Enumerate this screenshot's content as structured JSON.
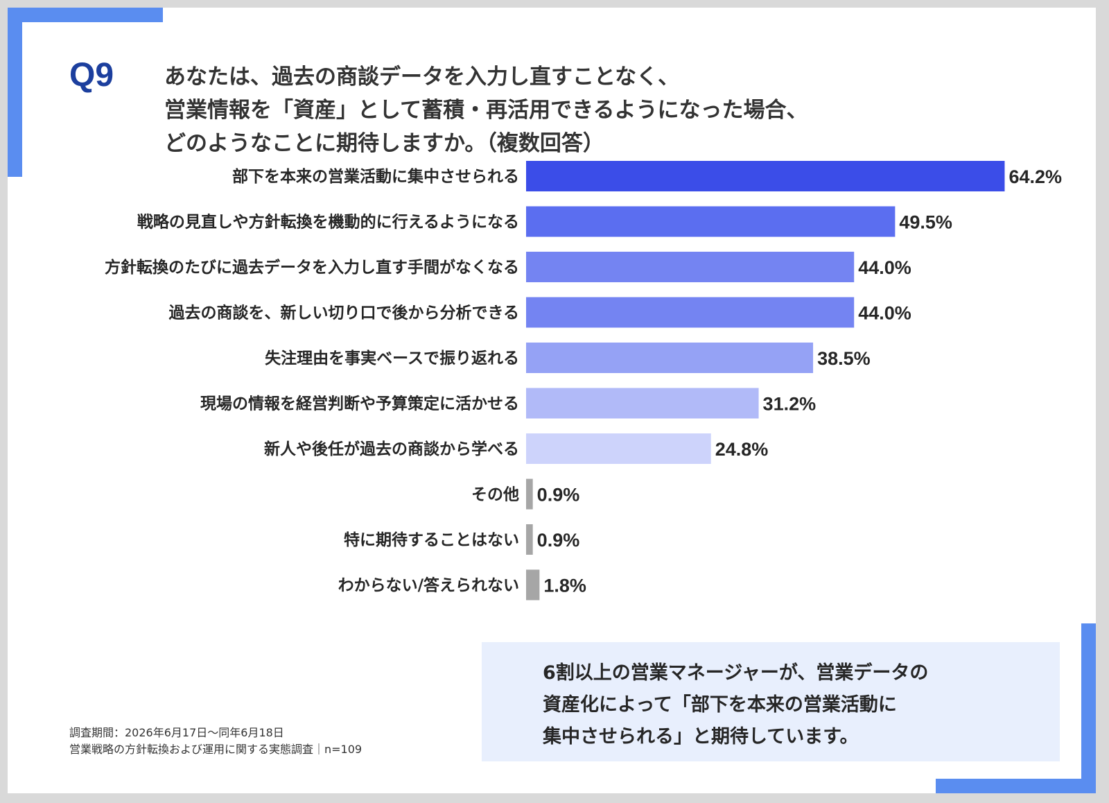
{
  "question": {
    "label": "Q9",
    "lines": [
      "あなたは、過去の商談データを入力し直すことなく、",
      "営業情報を「資産」として蓄積・再活用できるようになった場合、",
      "どのようなことに期待しますか。（複数回答）"
    ]
  },
  "chart_data": {
    "type": "bar",
    "orientation": "horizontal",
    "categories": [
      "部下を本来の営業活動に集中させられる",
      "戦略の見直しや方針転換を機動的に行えるようになる",
      "方針転換のたびに過去データを入力し直す手間がなくなる",
      "過去の商談を、新しい切り口で後から分析できる",
      "失注理由を事実ベースで振り返れる",
      "現場の情報を経営判断や予算策定に活かせる",
      "新人や後任が過去の商談から学べる",
      "その他",
      "特に期待することはない",
      "わからない/答えられない"
    ],
    "values": [
      64.2,
      49.5,
      44.0,
      44.0,
      38.5,
      31.2,
      24.8,
      0.9,
      0.9,
      1.8
    ],
    "value_labels": [
      "64.2%",
      "49.5%",
      "44.0%",
      "44.0%",
      "38.5%",
      "31.2%",
      "24.8%",
      "0.9%",
      "0.9%",
      "1.8%"
    ],
    "colors": [
      "#3b4de8",
      "#5b6ef0",
      "#7484f2",
      "#7484f2",
      "#95a2f5",
      "#b1baf8",
      "#cdd3fb",
      "#a6a6a6",
      "#a6a6a6",
      "#a6a6a6"
    ],
    "unit": "%",
    "grid": false
  },
  "callout": {
    "lines": [
      "6割以上の営業マネージャーが、営業データの",
      "資産化によって「部下を本来の営業活動に",
      "集中させられる」と期待しています。"
    ]
  },
  "footnote": {
    "period": "調査期間：2026年6月17日～同年6月18日",
    "survey": "営業戦略の方針転換および運用に関する実態調査｜n=109"
  }
}
